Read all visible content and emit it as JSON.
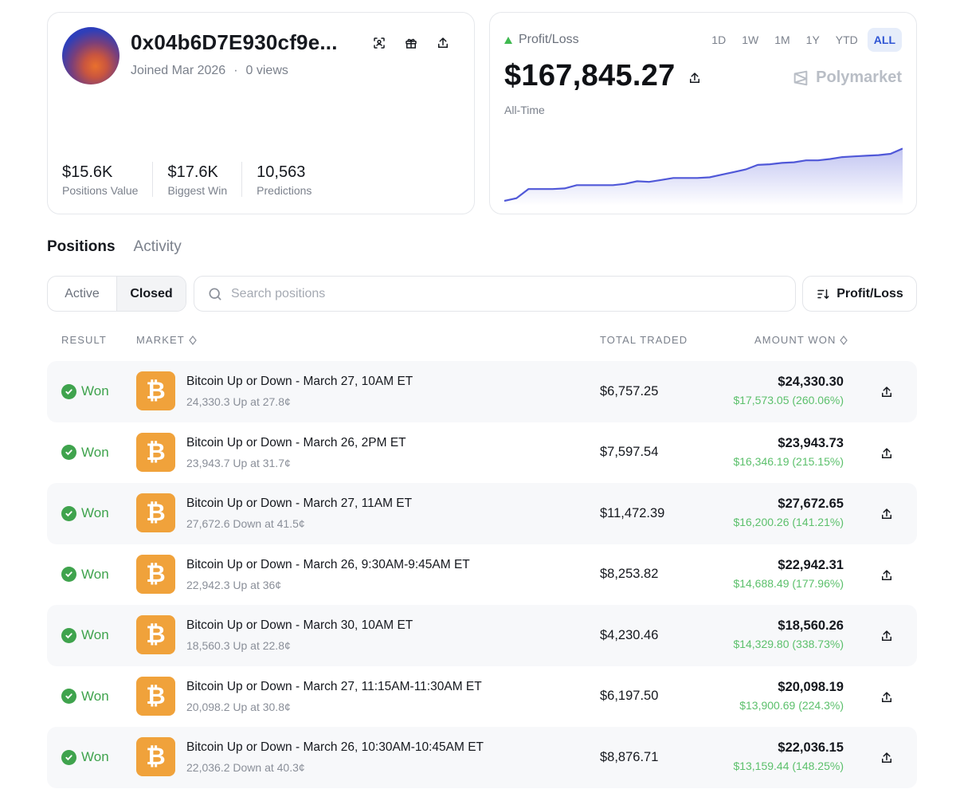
{
  "profile": {
    "username": "0x04b6D7E930cf9e...",
    "joined": "Joined Mar 2026",
    "separator": "·",
    "views": "0 views",
    "stats": [
      {
        "value": "$15.6K",
        "label": "Positions Value"
      },
      {
        "value": "$17.6K",
        "label": "Biggest Win"
      },
      {
        "value": "10,563",
        "label": "Predictions"
      }
    ]
  },
  "pnl": {
    "label": "Profit/Loss",
    "amount": "$167,845.27",
    "period_label": "All-Time",
    "brand": "Polymarket",
    "ranges": [
      "1D",
      "1W",
      "1M",
      "1Y",
      "YTD",
      "ALL"
    ],
    "active_range": "ALL",
    "line_color": "#5058d8"
  },
  "chart_data": {
    "type": "area",
    "values": [
      0,
      0.04,
      0.18,
      0.18,
      0.18,
      0.19,
      0.24,
      0.24,
      0.24,
      0.24,
      0.26,
      0.3,
      0.29,
      0.32,
      0.35,
      0.35,
      0.35,
      0.36,
      0.4,
      0.44,
      0.48,
      0.55,
      0.56,
      0.58,
      0.59,
      0.62,
      0.62,
      0.64,
      0.67,
      0.68,
      0.69,
      0.7,
      0.72,
      0.8
    ]
  },
  "tabs": {
    "positions": "Positions",
    "activity": "Activity"
  },
  "filter": {
    "active": "Active",
    "closed": "Closed",
    "search_placeholder": "Search positions",
    "sort_label": "Profit/Loss"
  },
  "table": {
    "headers": {
      "result": "RESULT",
      "market": "MARKET",
      "total_traded": "TOTAL TRADED",
      "amount_won": "AMOUNT WON"
    },
    "rows": [
      {
        "result": "Won",
        "title": "Bitcoin Up or Down - March 27, 10AM ET",
        "sub": "24,330.3 Up at 27.8¢",
        "traded": "$6,757.25",
        "won": "$24,330.30",
        "gain": "$17,573.05 (260.06%)"
      },
      {
        "result": "Won",
        "title": "Bitcoin Up or Down - March 26, 2PM ET",
        "sub": "23,943.7 Up at 31.7¢",
        "traded": "$7,597.54",
        "won": "$23,943.73",
        "gain": "$16,346.19 (215.15%)"
      },
      {
        "result": "Won",
        "title": "Bitcoin Up or Down - March 27, 11AM ET",
        "sub": "27,672.6 Down at 41.5¢",
        "traded": "$11,472.39",
        "won": "$27,672.65",
        "gain": "$16,200.26 (141.21%)"
      },
      {
        "result": "Won",
        "title": "Bitcoin Up or Down - March 26, 9:30AM-9:45AM ET",
        "sub": "22,942.3 Up at 36¢",
        "traded": "$8,253.82",
        "won": "$22,942.31",
        "gain": "$14,688.49 (177.96%)"
      },
      {
        "result": "Won",
        "title": "Bitcoin Up or Down - March 30, 10AM ET",
        "sub": "18,560.3 Up at 22.8¢",
        "traded": "$4,230.46",
        "won": "$18,560.26",
        "gain": "$14,329.80 (338.73%)"
      },
      {
        "result": "Won",
        "title": "Bitcoin Up or Down - March 27, 11:15AM-11:30AM ET",
        "sub": "20,098.2 Up at 30.8¢",
        "traded": "$6,197.50",
        "won": "$20,098.19",
        "gain": "$13,900.69 (224.3%)"
      },
      {
        "result": "Won",
        "title": "Bitcoin Up or Down - March 26, 10:30AM-10:45AM ET",
        "sub": "22,036.2 Down at 40.3¢",
        "traded": "$8,876.71",
        "won": "$22,036.15",
        "gain": "$13,159.44 (148.25%)"
      }
    ]
  }
}
